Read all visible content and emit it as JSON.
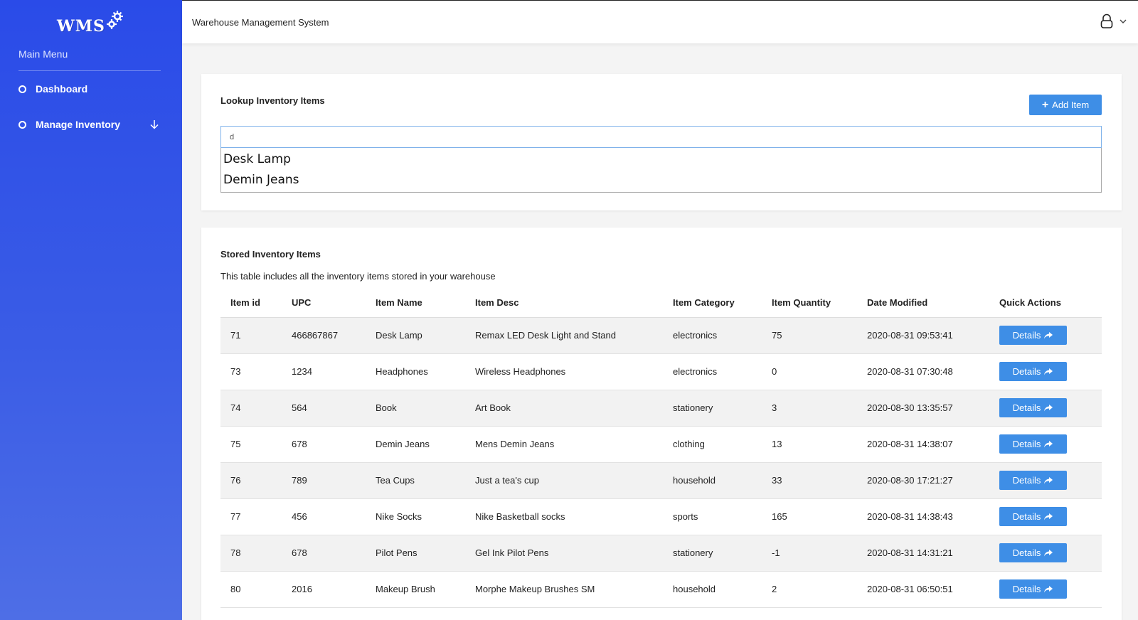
{
  "sidebar": {
    "logo_text": "WMS",
    "menu_title": "Main Menu",
    "items": [
      {
        "label": "Dashboard"
      },
      {
        "label": "Manage Inventory"
      }
    ]
  },
  "topbar": {
    "title": "Warehouse Management System",
    "user_icon": "user-lock-icon"
  },
  "lookup": {
    "title": "Lookup Inventory Items",
    "add_button": "Add Item",
    "search_value": "d",
    "suggestions": [
      "Desk Lamp",
      "Demin Jeans"
    ]
  },
  "stored": {
    "title": "Stored Inventory Items",
    "description": "This table includes all the inventory items stored in your warehouse",
    "columns": [
      "Item id",
      "UPC",
      "Item Name",
      "Item Desc",
      "Item Category",
      "Item Quantity",
      "Date Modified",
      "Quick Actions"
    ],
    "action_label": "Details",
    "rows": [
      [
        "71",
        "466867867",
        "Desk Lamp",
        "Remax LED Desk Light and Stand",
        "electronics",
        "75",
        "2020-08-31 09:53:41"
      ],
      [
        "73",
        "1234",
        "Headphones",
        "Wireless Headphones",
        "electronics",
        "0",
        "2020-08-31 07:30:48"
      ],
      [
        "74",
        "564",
        "Book",
        "Art Book",
        "stationery",
        "3",
        "2020-08-30 13:35:57"
      ],
      [
        "75",
        "678",
        "Demin Jeans",
        "Mens Demin Jeans",
        "clothing",
        "13",
        "2020-08-31 14:38:07"
      ],
      [
        "76",
        "789",
        "Tea Cups",
        "Just a tea's cup",
        "household",
        "33",
        "2020-08-30 17:21:27"
      ],
      [
        "77",
        "456",
        "Nike Socks",
        "Nike Basketball socks",
        "sports",
        "165",
        "2020-08-31 14:38:43"
      ],
      [
        "78",
        "678",
        "Pilot Pens",
        "Gel Ink Pilot Pens",
        "stationery",
        "-1",
        "2020-08-31 14:31:21"
      ],
      [
        "80",
        "2016",
        "Makeup Brush",
        "Morphe Makeup Brushes SM",
        "household",
        "2",
        "2020-08-31 06:50:51"
      ]
    ]
  },
  "colors": {
    "sidebar_top": "#2a4be8",
    "sidebar_bottom": "#4e6ee6",
    "button": "#3e8ee6"
  }
}
